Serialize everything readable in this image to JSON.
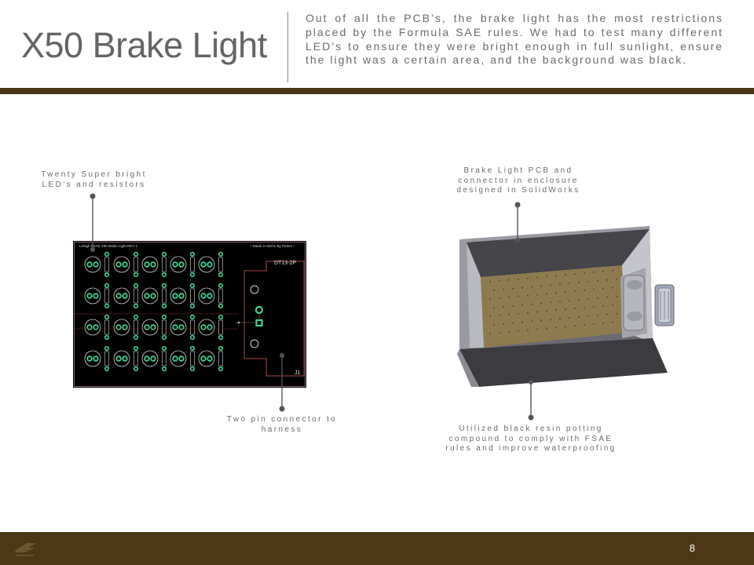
{
  "slide": {
    "title": "X50 Brake Light",
    "intro": "Out of all the PCB’s, the brake light has the most restrictions placed by the Formula SAE rules. We had to test many different LED’s to ensure they were bright enough in full sunlight, ensure the light was a certain area, and the background was black.",
    "page_number": "8"
  },
  "callouts": {
    "leds": "Twenty Super bright LED’s and resistors",
    "connector": "Two pin connector to harness",
    "enclosure": "Brake Light PCB and connector in enclosure designed in SolidWorks",
    "potting": "Utilized black resin potting compound to comply with FSAE rules and improve waterproofing"
  },
  "pcb": {
    "header": "Lehigh FSAE X50 Brake Light REV 1",
    "credit": "* Made in Mizhir By Peters *",
    "connector_label": "DT13-2P",
    "ref_label": "J1"
  },
  "colors": {
    "brand_brown": "#4c3718",
    "pad_green": "#3fd08a",
    "potting": "#8e7a4e"
  }
}
